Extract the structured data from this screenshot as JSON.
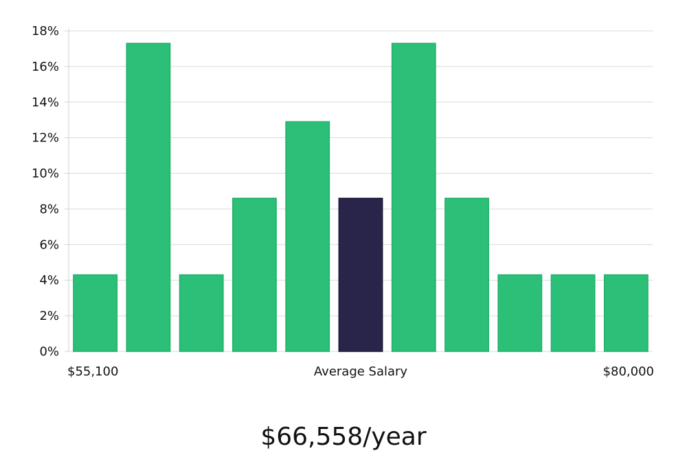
{
  "chart_data": {
    "type": "bar",
    "bin_count": 11,
    "values": [
      4.3,
      17.3,
      4.3,
      8.6,
      12.9,
      8.6,
      17.3,
      8.6,
      4.3,
      4.3,
      4.3
    ],
    "highlight_index": 5,
    "ylim": [
      0,
      18
    ],
    "y_ticks": [
      0,
      2,
      4,
      6,
      8,
      10,
      12,
      14,
      16,
      18
    ],
    "y_tick_suffix": "%",
    "grid": true,
    "x_labels": {
      "left": "$55,100",
      "center": "Average Salary",
      "right": "$80,000"
    },
    "headline": "$66,558/year",
    "colors": {
      "bar": "#2bbf77",
      "bar_border": "#22b06a",
      "highlight": "#29254a",
      "highlight_border": "#1b1838",
      "grid": "#d9d9d9",
      "axis": "#d0d0d0"
    }
  }
}
